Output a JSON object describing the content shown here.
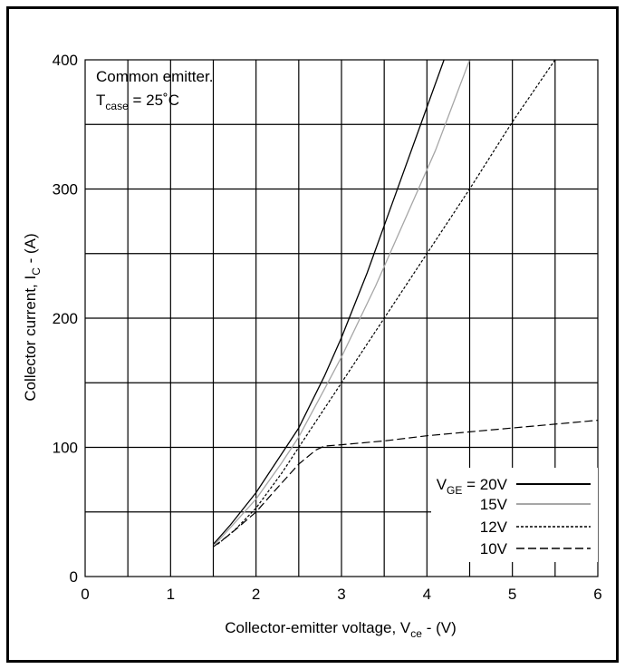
{
  "chart_data": {
    "type": "line",
    "xlabel": {
      "main": "Collector-emitter voltage, V",
      "sub": "ce",
      "suffix": " - (V)"
    },
    "ylabel": {
      "main": "Collector current, I",
      "sub": "C",
      "suffix": " - (A)"
    },
    "xlim": [
      0,
      6
    ],
    "ylim": [
      0,
      400
    ],
    "xticks": [
      "0",
      "1",
      "2",
      "3",
      "4",
      "5",
      "6"
    ],
    "yticks": [
      "0",
      "100",
      "200",
      "300",
      "400"
    ],
    "grid": true,
    "annotation": {
      "line1": "Common emitter.",
      "line2_main": "T",
      "line2_sub": "case",
      "line2_suffix": " = 25˚C"
    },
    "legend": {
      "placement": "bottom-right",
      "prefix_main": "V",
      "prefix_sub": "GE",
      "prefix_eq": " = ",
      "labels": [
        "20V",
        "15V",
        "12V",
        "10V"
      ]
    },
    "series": [
      {
        "name": "20V",
        "style": "solid",
        "color": "#000000",
        "x": [
          1.5,
          1.7,
          2.0,
          2.3,
          2.5,
          2.8,
          3.0,
          3.3,
          3.6,
          3.9,
          4.2
        ],
        "y": [
          25,
          40,
          65,
          95,
          115,
          155,
          185,
          235,
          290,
          345,
          400
        ]
      },
      {
        "name": "15V",
        "style": "solid",
        "color": "#a6a6a6",
        "x": [
          1.52,
          1.7,
          2.0,
          2.3,
          2.5,
          2.8,
          3.0,
          3.4,
          3.8,
          4.1,
          4.5
        ],
        "y": [
          25,
          38,
          60,
          88,
          108,
          145,
          170,
          225,
          285,
          330,
          400
        ]
      },
      {
        "name": "12V",
        "style": "dotted",
        "color": "#000000",
        "x": [
          1.55,
          1.75,
          2.0,
          2.3,
          2.5,
          2.8,
          3.0,
          3.5,
          4.0,
          4.5,
          5.0,
          5.5
        ],
        "y": [
          25,
          36,
          53,
          80,
          100,
          130,
          150,
          200,
          250,
          300,
          352,
          402
        ]
      },
      {
        "name": "10V",
        "style": "dashed",
        "color": "#000000",
        "x": [
          1.5,
          1.7,
          2.0,
          2.2,
          2.5,
          2.7,
          2.8,
          3.0,
          3.5,
          4.0,
          4.5,
          5.0,
          5.5,
          6.0
        ],
        "y": [
          23,
          33,
          50,
          65,
          87,
          98,
          101,
          102,
          105,
          109,
          112,
          115,
          118,
          121
        ]
      }
    ]
  }
}
